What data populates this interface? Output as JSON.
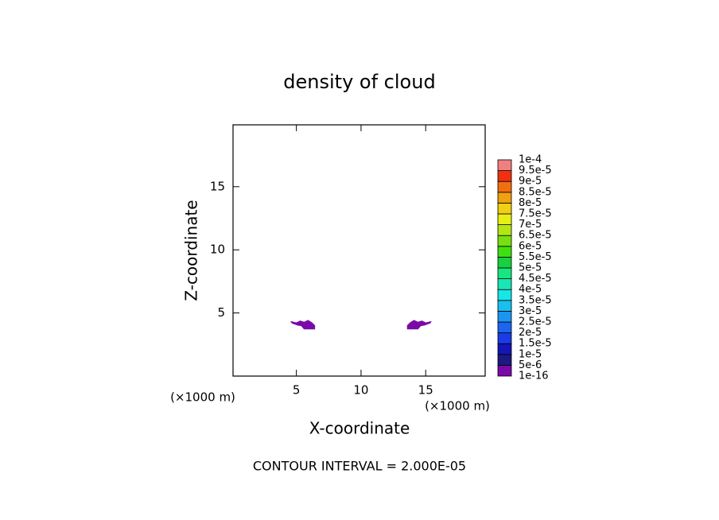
{
  "chart_data": {
    "type": "contour",
    "title": "density of cloud",
    "x_label": "X-coordinate",
    "y_label": "Z-coordinate",
    "x_unit": "(×1000 m)",
    "y_unit": "(×1000 m)",
    "footer": "CONTOUR INTERVAL = 2.000E-05",
    "xlim": [
      0.1,
      19.6
    ],
    "ylim": [
      0,
      19.9
    ],
    "xticks": [
      5,
      10,
      15
    ],
    "yticks": [
      5,
      10,
      15
    ],
    "color": "#7a0aa8",
    "contours": [
      {
        "x": [
          4.6,
          5.0,
          5.3,
          5.6,
          5.9,
          6.2,
          6.4,
          6.4,
          5.6,
          5.4,
          5.1,
          4.7
        ],
        "y": [
          4.3,
          4.2,
          4.35,
          4.25,
          4.4,
          4.2,
          4.0,
          3.75,
          3.75,
          4.0,
          4.05,
          4.2
        ]
      },
      {
        "x": [
          15.4,
          15.0,
          14.7,
          14.4,
          14.1,
          13.8,
          13.6,
          13.6,
          14.4,
          14.6,
          14.9,
          15.3
        ],
        "y": [
          4.3,
          4.2,
          4.35,
          4.25,
          4.4,
          4.2,
          4.0,
          3.75,
          3.75,
          4.0,
          4.05,
          4.2
        ]
      }
    ],
    "colorbar": {
      "ticks": [
        {
          "value": 1e-16,
          "label": "1e-16"
        },
        {
          "value": 5e-06,
          "label": "5e-6"
        },
        {
          "value": 1e-05,
          "label": "1e-5"
        },
        {
          "value": 1.5e-05,
          "label": "1.5e-5"
        },
        {
          "value": 2e-05,
          "label": "2e-5"
        },
        {
          "value": 2.5e-05,
          "label": "2.5e-5"
        },
        {
          "value": 3e-05,
          "label": "3e-5"
        },
        {
          "value": 3.5e-05,
          "label": "3.5e-5"
        },
        {
          "value": 4e-05,
          "label": "4e-5"
        },
        {
          "value": 4.5e-05,
          "label": "4.5e-5"
        },
        {
          "value": 5e-05,
          "label": "5e-5"
        },
        {
          "value": 5.5e-05,
          "label": "5.5e-5"
        },
        {
          "value": 6e-05,
          "label": "6e-5"
        },
        {
          "value": 6.5e-05,
          "label": "6.5e-5"
        },
        {
          "value": 7e-05,
          "label": "7e-5"
        },
        {
          "value": 7.5e-05,
          "label": "7.5e-5"
        },
        {
          "value": 8e-05,
          "label": "8e-5"
        },
        {
          "value": 8.5e-05,
          "label": "8.5e-5"
        },
        {
          "value": 9e-05,
          "label": "9e-5"
        },
        {
          "value": 9.5e-05,
          "label": "9.5e-5"
        },
        {
          "value": 0.0001,
          "label": "1e-4"
        }
      ],
      "colors": [
        "#7a0aa8",
        "#1a1a80",
        "#1515b8",
        "#1a3ce8",
        "#1a66f0",
        "#1a96f0",
        "#18c0f0",
        "#18e6e6",
        "#18e6b4",
        "#18e680",
        "#18d040",
        "#40e010",
        "#78e010",
        "#b4e614",
        "#e6f014",
        "#f0d010",
        "#f0a010",
        "#f07010",
        "#f03010",
        "#f08080"
      ]
    }
  }
}
